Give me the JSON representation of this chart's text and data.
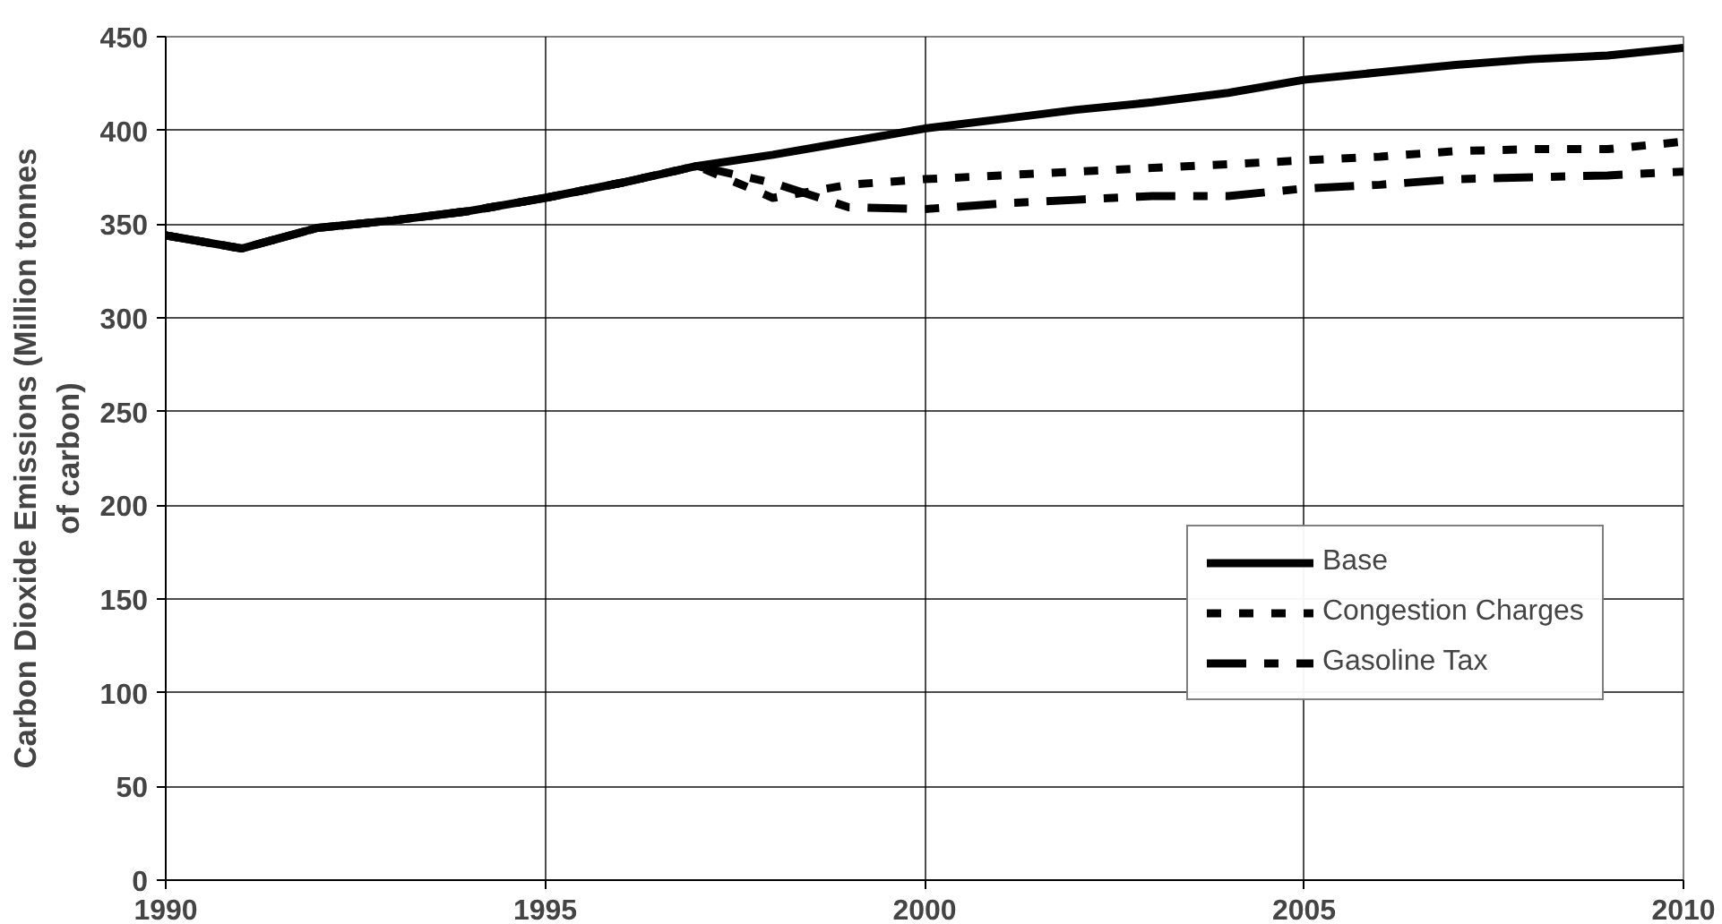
{
  "chart_data": {
    "type": "line",
    "ylabel": "Carbon Dioxide Emissions (Million tonnes\nof carbon)",
    "x": [
      1990,
      1991,
      1992,
      1993,
      1994,
      1995,
      1996,
      1997,
      1998,
      1999,
      2000,
      2001,
      2002,
      2003,
      2004,
      2005,
      2006,
      2007,
      2008,
      2009,
      2010
    ],
    "series": [
      {
        "name": "Base",
        "color": "#000000",
        "line_style": "solid",
        "values": [
          344,
          337,
          348,
          352,
          357,
          364,
          372,
          381,
          387,
          394,
          401,
          406,
          411,
          415,
          420,
          427,
          431,
          435,
          438,
          440,
          444
        ]
      },
      {
        "name": "Congestion Charges",
        "color": "#000000",
        "line_style": "dotted",
        "values": [
          344,
          337,
          348,
          352,
          357,
          364,
          372,
          381,
          364,
          371,
          374,
          376,
          378,
          380,
          382,
          384,
          386,
          389,
          390,
          390,
          394
        ]
      },
      {
        "name": "Gasoline Tax",
        "color": "#000000",
        "line_style": "dashed",
        "values": [
          344,
          337,
          348,
          352,
          357,
          364,
          372,
          381,
          372,
          359,
          358,
          361,
          363,
          365,
          365,
          369,
          371,
          374,
          375,
          376,
          378
        ]
      }
    ],
    "xlim": [
      1990,
      2010
    ],
    "xticks": [
      1990,
      1995,
      2000,
      2005,
      2010
    ],
    "ylim": [
      0,
      450
    ],
    "yticks": [
      0,
      50,
      100,
      150,
      200,
      250,
      300,
      350,
      400,
      450
    ],
    "grid": true,
    "legend": "bottom right",
    "marker": "none"
  }
}
